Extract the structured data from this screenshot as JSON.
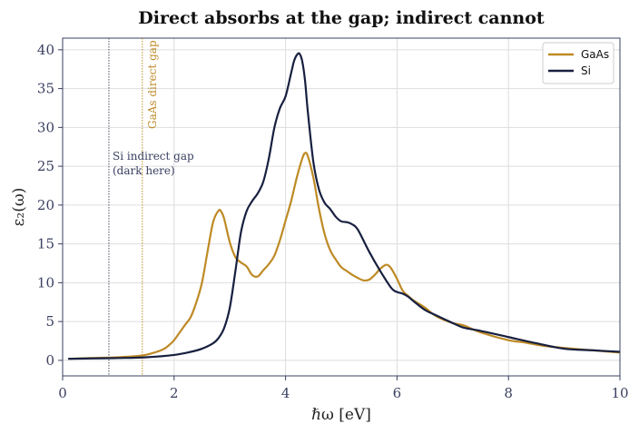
{
  "chart_data": {
    "type": "line",
    "title": "Direct absorbs at the gap; indirect cannot",
    "xlabel": "ℏω  [eV]",
    "ylabel": "ε₂(ω)",
    "xlim": [
      0,
      10
    ],
    "ylim": [
      -2,
      41.5
    ],
    "xticks": [
      0,
      2,
      4,
      6,
      8,
      10
    ],
    "yticks": [
      0,
      5,
      10,
      15,
      20,
      25,
      30,
      35,
      40
    ],
    "grid": true,
    "legend": "top-right",
    "series": [
      {
        "name": "GaAs",
        "color": "#be8a25",
        "x": [
          0.1,
          0.5,
          1.0,
          1.4,
          1.6,
          1.8,
          1.9,
          2.0,
          2.1,
          2.2,
          2.3,
          2.4,
          2.5,
          2.6,
          2.7,
          2.8,
          2.85,
          2.9,
          3.0,
          3.1,
          3.2,
          3.3,
          3.4,
          3.5,
          3.6,
          3.7,
          3.8,
          3.9,
          4.0,
          4.1,
          4.2,
          4.3,
          4.35,
          4.4,
          4.5,
          4.6,
          4.7,
          4.8,
          4.9,
          5.0,
          5.1,
          5.2,
          5.3,
          5.4,
          5.5,
          5.6,
          5.7,
          5.8,
          5.85,
          5.9,
          6.0,
          6.1,
          6.2,
          6.3,
          6.5,
          6.7,
          7.0,
          7.2,
          7.5,
          8.0,
          8.3,
          8.6,
          9.0,
          9.5,
          10.0
        ],
        "y": [
          0.2,
          0.3,
          0.4,
          0.6,
          0.9,
          1.4,
          1.9,
          2.6,
          3.6,
          4.6,
          5.6,
          7.5,
          10.0,
          14.0,
          17.8,
          19.3,
          19.1,
          18.2,
          15.2,
          13.3,
          12.6,
          12.1,
          11.0,
          10.8,
          11.6,
          12.4,
          13.5,
          15.5,
          18.0,
          20.5,
          23.5,
          26.0,
          26.7,
          26.3,
          23.5,
          19.5,
          16.3,
          14.2,
          13.0,
          12.0,
          11.5,
          11.0,
          10.6,
          10.3,
          10.4,
          11.0,
          11.8,
          12.3,
          12.2,
          11.8,
          10.5,
          9.0,
          8.3,
          7.7,
          6.8,
          5.7,
          4.8,
          4.5,
          3.6,
          2.6,
          2.3,
          1.9,
          1.6,
          1.3,
          1.0
        ]
      },
      {
        "name": "Si",
        "color": "#182040",
        "x": [
          0.1,
          0.5,
          1.0,
          1.5,
          2.0,
          2.3,
          2.5,
          2.7,
          2.8,
          2.9,
          3.0,
          3.1,
          3.2,
          3.3,
          3.4,
          3.5,
          3.6,
          3.7,
          3.8,
          3.9,
          4.0,
          4.1,
          4.15,
          4.2,
          4.25,
          4.3,
          4.35,
          4.4,
          4.5,
          4.6,
          4.7,
          4.8,
          4.9,
          5.0,
          5.1,
          5.2,
          5.3,
          5.5,
          5.7,
          5.9,
          6.0,
          6.1,
          6.2,
          6.3,
          6.5,
          6.7,
          7.0,
          7.2,
          7.5,
          8.0,
          8.5,
          9.0,
          9.5,
          10.0
        ],
        "y": [
          0.2,
          0.25,
          0.3,
          0.4,
          0.7,
          1.1,
          1.5,
          2.2,
          2.9,
          4.2,
          6.8,
          11.5,
          16.5,
          19.2,
          20.5,
          21.5,
          23.0,
          26.0,
          30.0,
          32.5,
          34.0,
          37.0,
          38.5,
          39.3,
          39.5,
          38.5,
          36.0,
          32.0,
          25.5,
          22.0,
          20.3,
          19.5,
          18.5,
          17.9,
          17.8,
          17.5,
          16.8,
          14.0,
          11.5,
          9.3,
          8.8,
          8.6,
          8.2,
          7.6,
          6.5,
          5.8,
          4.8,
          4.2,
          3.8,
          3.0,
          2.2,
          1.5,
          1.3,
          1.1
        ]
      }
    ],
    "vlines": [
      {
        "x": 0.83,
        "color": "#4a4e60"
      },
      {
        "x": 1.43,
        "color": "#be8a25"
      }
    ],
    "annotations": {
      "si_gap_line1": "Si indirect gap",
      "si_gap_line2": "(dark here)",
      "gaas_gap": "GaAs direct gap"
    }
  }
}
